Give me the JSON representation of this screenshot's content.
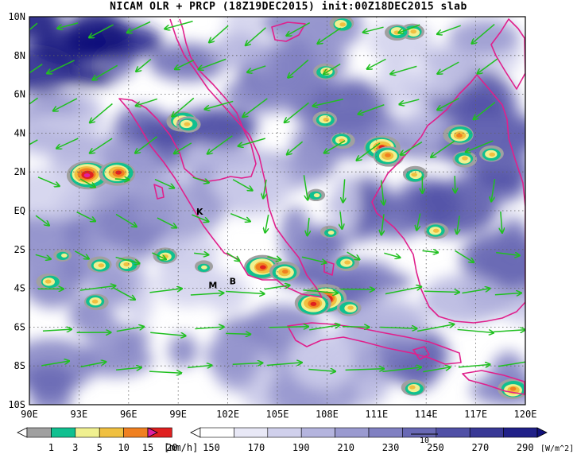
{
  "title": "NICAM OLR + PRCP (18Z19DEC2015) init:00Z18DEC2015 slab",
  "lat_labels": [
    "10N",
    "8N",
    "6N",
    "4N",
    "2N",
    "EQ",
    "2S",
    "4S",
    "6S",
    "8S",
    "10S"
  ],
  "lon_labels": [
    "90E",
    "93E",
    "96E",
    "99E",
    "102E",
    "105E",
    "108E",
    "111E",
    "114E",
    "117E",
    "120E"
  ],
  "markers": [
    {
      "text": "K",
      "lon": 100.3,
      "lat": -0.2
    },
    {
      "text": "M",
      "lon": 101.1,
      "lat": -4.0
    },
    {
      "text": "B",
      "lon": 102.3,
      "lat": -3.8
    }
  ],
  "precip_colorbar": {
    "ticks": [
      "1",
      "3",
      "5",
      "10",
      "15",
      "20"
    ],
    "unit": "[mm/h]",
    "colors": [
      "#a0a0a0",
      "#10c090",
      "#f0f090",
      "#f0c040",
      "#f08020",
      "#e02020",
      "#e020a0"
    ]
  },
  "olr_colorbar": {
    "ticks": [
      "150",
      "170",
      "190",
      "210",
      "230",
      "250",
      "270",
      "290"
    ],
    "unit": "[W/m^2]",
    "vector_ref": "10",
    "colors": [
      "#ffffff",
      "#e8e8f6",
      "#d0d0ec",
      "#b4b4de",
      "#9a9ad0",
      "#8080c2",
      "#6868b4",
      "#5050a6",
      "#383896",
      "#202088",
      "#10107a"
    ]
  },
  "colors": {
    "coastline": "#e0208c",
    "wind_arrows": "#20c020",
    "grid": "#606060"
  }
}
